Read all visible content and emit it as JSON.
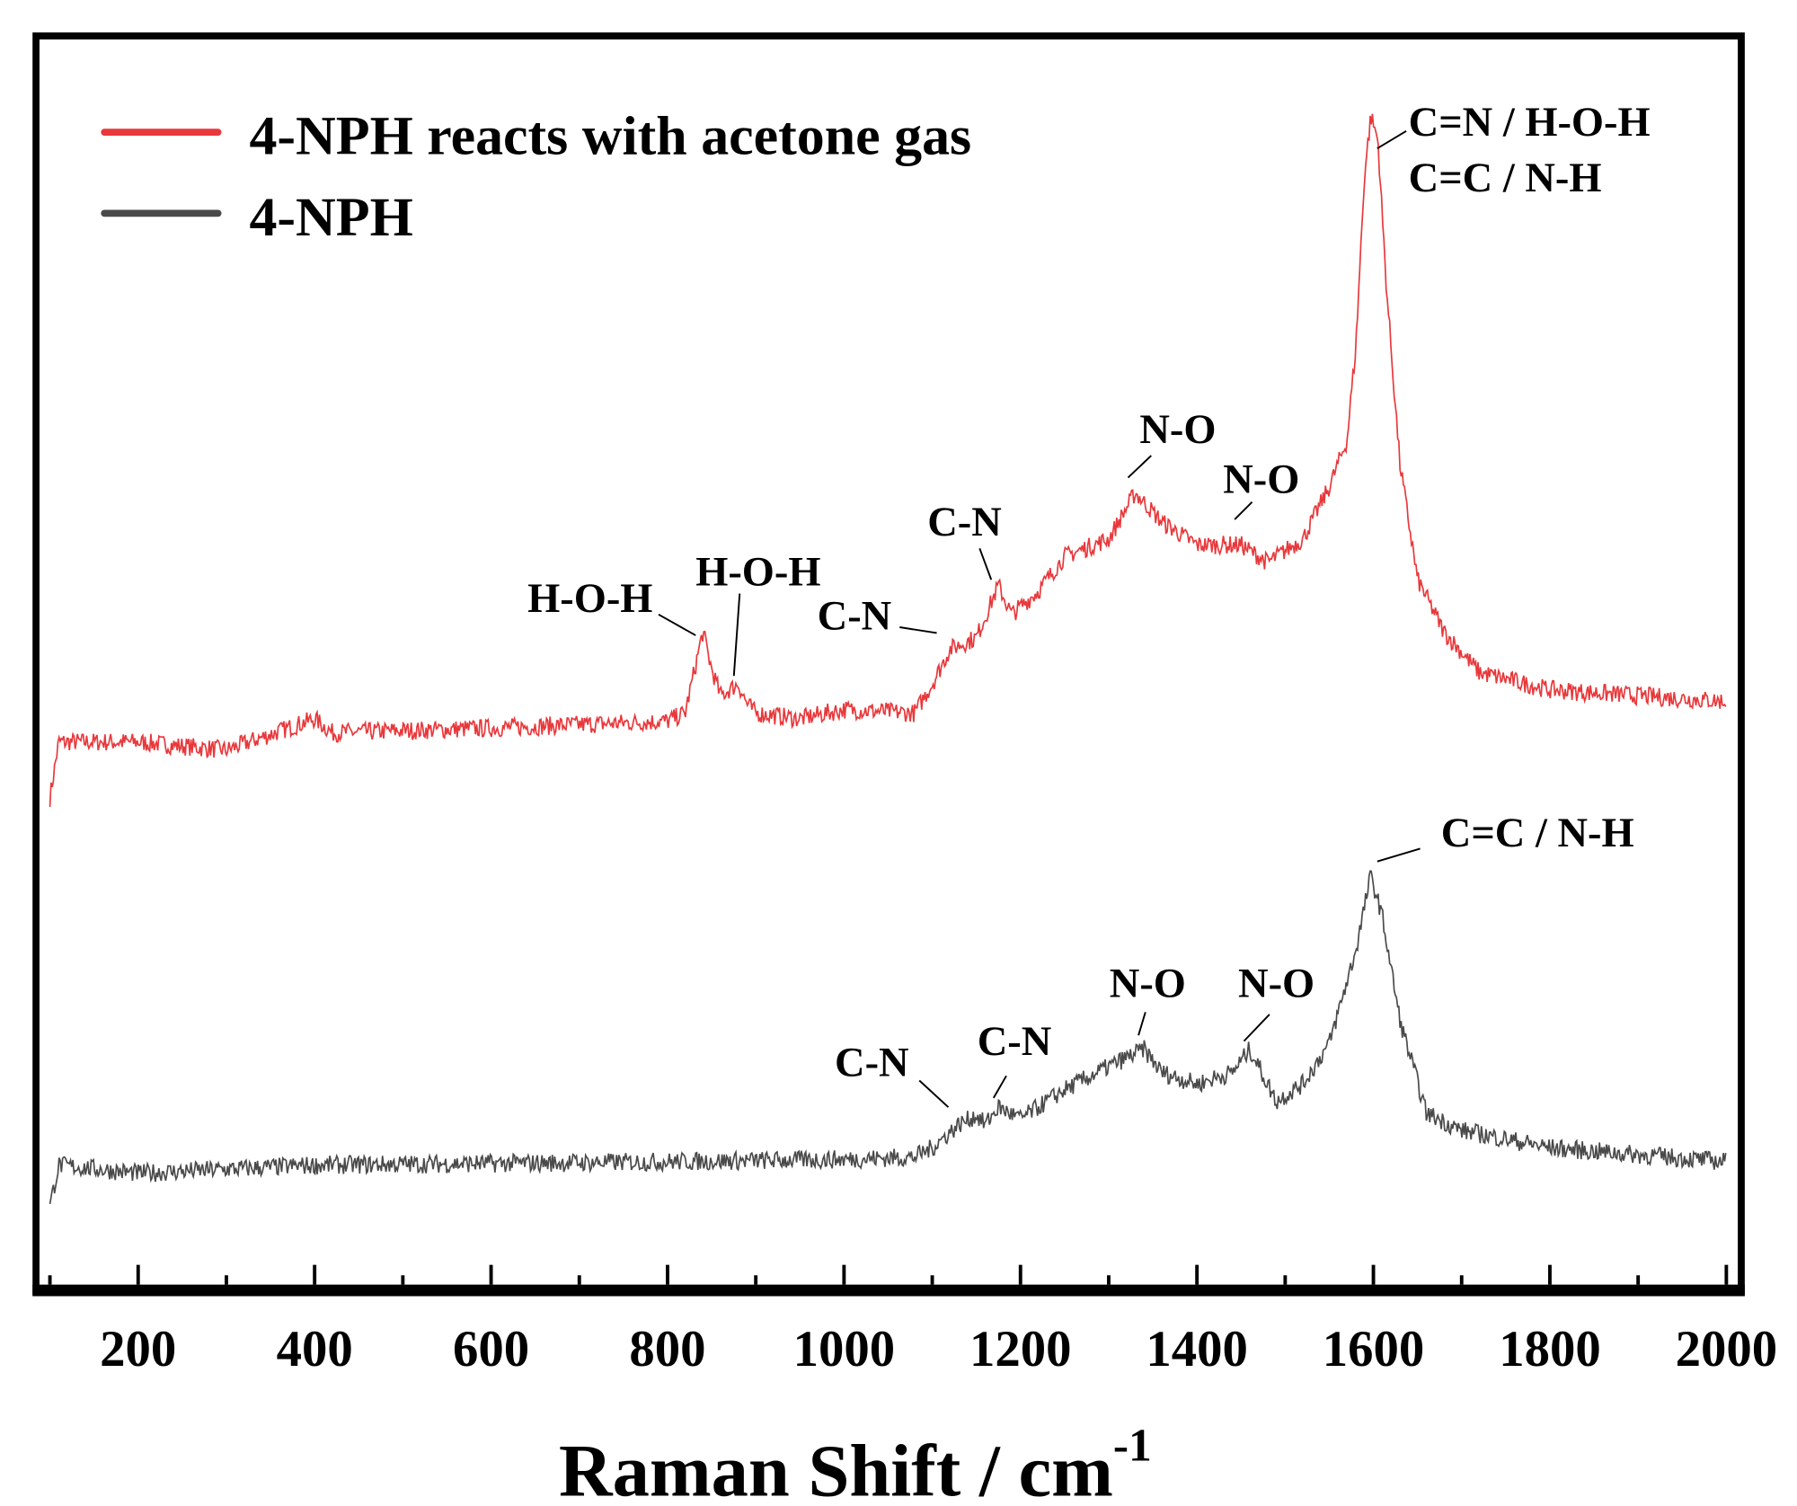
{
  "chart_data": {
    "type": "line",
    "title": "",
    "xlabel": "Raman Shift / cm",
    "xlabel_superscript": "-1",
    "ylabel": "",
    "xlim": [
      90,
      2005
    ],
    "ylim": [
      0,
      1089
    ],
    "y_units": "a.u. (offset, unlabeled)",
    "xticks": [
      "200",
      "400",
      "600",
      "800",
      "1000",
      "1200",
      "1400",
      "1600",
      "1800",
      "2000"
    ],
    "xtick_values": [
      200,
      400,
      600,
      800,
      1000,
      1200,
      1400,
      1600,
      1800,
      2000
    ],
    "minor_xtick_values": [
      100,
      300,
      500,
      700,
      900,
      1100,
      1300,
      1500,
      1700,
      1900
    ],
    "grid": false,
    "legend_position": "top-left",
    "series": [
      {
        "name": "4-NPH reacts with acetone gas",
        "color": "#e8383b",
        "x": [
          100,
          110,
          200,
          300,
          400,
          420,
          600,
          800,
          820,
          840,
          850,
          860,
          880,
          890,
          900,
          950,
          1000,
          1080,
          1100,
          1120,
          1150,
          1175,
          1190,
          1220,
          1250,
          1300,
          1330,
          1360,
          1400,
          1450,
          1480,
          1520,
          1550,
          1570,
          1580,
          1590,
          1597,
          1605,
          1615,
          1630,
          1650,
          1680,
          1720,
          1800,
          2000
        ],
        "y": [
          429,
          477,
          477,
          470,
          497,
          485,
          489,
          495,
          502,
          572,
          540,
          517,
          527,
          510,
          502,
          497,
          505,
          502,
          527,
          557,
          567,
          612,
          587,
          607,
          637,
          652,
          692,
          667,
          647,
          647,
          632,
          652,
          697,
          737,
          817,
          967,
          1017,
          997,
          867,
          717,
          617,
          572,
          537,
          522,
          512
        ]
      },
      {
        "name": "4-NPH",
        "color": "#4a4a4a",
        "x": [
          100,
          110,
          200,
          400,
          800,
          1000,
          1080,
          1100,
          1130,
          1150,
          1160,
          1175,
          1200,
          1250,
          1300,
          1340,
          1360,
          1400,
          1440,
          1460,
          1490,
          1520,
          1550,
          1580,
          1597,
          1610,
          1630,
          1660,
          1700,
          1800,
          2000
        ],
        "y": [
          77,
          112,
          105,
          112,
          115,
          117,
          119,
          127,
          147,
          155,
          147,
          162,
          152,
          177,
          197,
          212,
          192,
          182,
          192,
          212,
          167,
          182,
          217,
          297,
          362,
          327,
          237,
          157,
          142,
          127,
          115
        ]
      }
    ],
    "annotations": [
      {
        "series": 0,
        "label": "H-O-H",
        "x": 840
      },
      {
        "series": 0,
        "label": "H-O-H",
        "x": 880
      },
      {
        "series": 0,
        "label": "C-N",
        "x": 1115
      },
      {
        "series": 0,
        "label": "C-N",
        "x": 1175
      },
      {
        "series": 0,
        "label": "N-O",
        "x": 1330
      },
      {
        "series": 0,
        "label": "N-O",
        "x": 1450
      },
      {
        "series": 0,
        "label": "C=N / H-O-H",
        "x": 1597
      },
      {
        "series": 0,
        "label": "C=C / N-H",
        "x": 1597
      },
      {
        "series": 1,
        "label": "C-N",
        "x": 1150
      },
      {
        "series": 1,
        "label": "C-N",
        "x": 1175
      },
      {
        "series": 1,
        "label": "N-O",
        "x": 1340
      },
      {
        "series": 1,
        "label": "N-O",
        "x": 1460
      },
      {
        "series": 1,
        "label": "C=C / N-H",
        "x": 1597
      }
    ]
  }
}
